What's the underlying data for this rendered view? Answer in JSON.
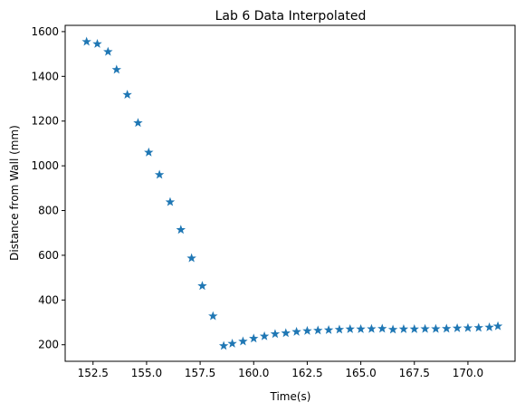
{
  "chart_data": {
    "type": "scatter",
    "title": "Lab 6 Data Interpolated",
    "xlabel": "Time(s)",
    "ylabel": "Distance from Wall (mm)",
    "xlim": [
      151.2,
      172.2
    ],
    "ylim": [
      126,
      1628
    ],
    "grid": false,
    "marker": "star",
    "xticks": [
      152.5,
      155.0,
      157.5,
      160.0,
      162.5,
      165.0,
      167.5,
      170.0
    ],
    "xtick_labels": [
      "152.5",
      "155.0",
      "157.5",
      "160.0",
      "162.5",
      "165.0",
      "167.5",
      "170.0"
    ],
    "yticks": [
      200,
      400,
      600,
      800,
      1000,
      1200,
      1400,
      1600
    ],
    "ytick_labels": [
      "200",
      "400",
      "600",
      "800",
      "1000",
      "1200",
      "1400",
      "1600"
    ],
    "series": [
      {
        "color": "#1f77b4",
        "x": [
          152.2,
          152.7,
          153.2,
          153.6,
          154.1,
          154.6,
          155.1,
          155.6,
          156.1,
          156.6,
          157.1,
          157.6,
          158.1,
          158.6,
          159.0,
          159.5,
          160.0,
          160.5,
          161.0,
          161.5,
          162.0,
          162.5,
          163.0,
          163.5,
          164.0,
          164.5,
          165.0,
          165.5,
          166.0,
          166.5,
          167.0,
          167.5,
          168.0,
          168.5,
          169.0,
          169.5,
          170.0,
          170.5,
          171.0,
          171.4
        ],
        "y": [
          1555,
          1545,
          1510,
          1430,
          1318,
          1192,
          1060,
          960,
          838,
          714,
          587,
          463,
          328,
          195,
          205,
          215,
          228,
          238,
          248,
          252,
          258,
          262,
          264,
          266,
          268,
          270,
          270,
          271,
          272,
          268,
          270,
          270,
          271,
          271,
          272,
          274,
          275,
          276,
          278,
          283
        ]
      }
    ]
  }
}
